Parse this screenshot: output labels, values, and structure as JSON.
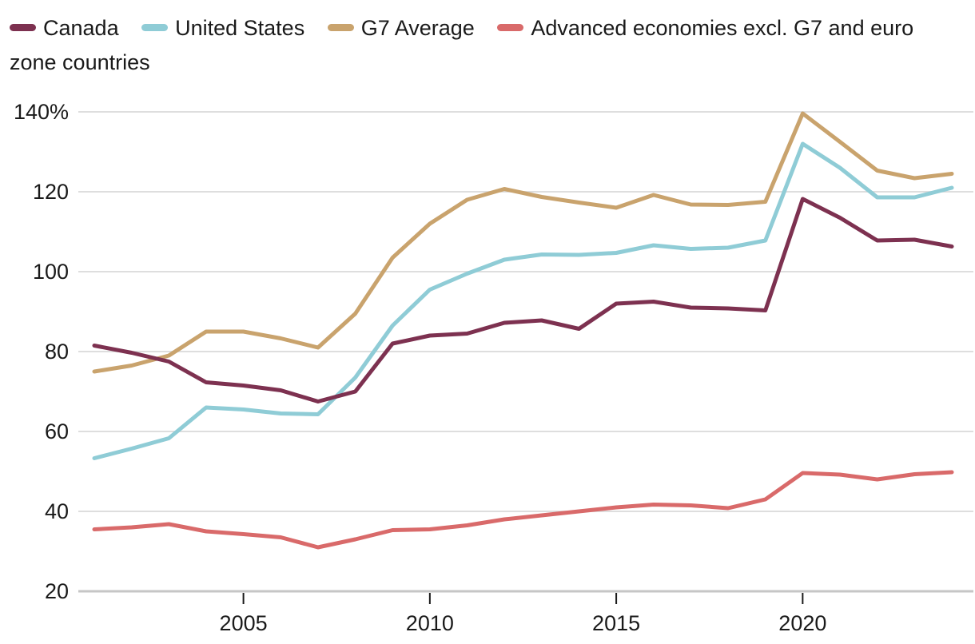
{
  "chart_data": {
    "type": "line",
    "x_label": "",
    "y_label": "",
    "x": [
      2001,
      2002,
      2003,
      2004,
      2005,
      2006,
      2007,
      2008,
      2009,
      2010,
      2011,
      2012,
      2013,
      2014,
      2015,
      2016,
      2017,
      2018,
      2019,
      2020,
      2021,
      2022,
      2023,
      2024
    ],
    "series": [
      {
        "name": "Canada",
        "color": "#7d3150",
        "values": [
          81.5,
          79.7,
          77.5,
          72.3,
          71.5,
          70.3,
          67.5,
          70,
          82,
          84,
          84.5,
          87.2,
          87.8,
          85.7,
          92,
          92.5,
          91,
          90.8,
          90.3,
          118.2,
          113.5,
          107.8,
          108,
          106.3
        ]
      },
      {
        "name": "United States",
        "color": "#8fccd6",
        "values": [
          53.3,
          55.7,
          58.3,
          66,
          65.5,
          64.5,
          64.3,
          73.5,
          86.5,
          95.5,
          99.5,
          103,
          104.3,
          104.2,
          104.7,
          106.6,
          105.7,
          106,
          107.8,
          132,
          126,
          118.6,
          118.6,
          121
        ]
      },
      {
        "name": "G7 Average",
        "color": "#c9a36d",
        "values": [
          75,
          76.5,
          79,
          85,
          85,
          83.3,
          81,
          89.5,
          103.5,
          112,
          118,
          120.7,
          118.7,
          117.3,
          116,
          119.2,
          116.8,
          116.7,
          117.5,
          139.6,
          132.5,
          125.3,
          123.4,
          124.5
        ]
      },
      {
        "name": "Advanced economies excl. G7 and euro zone countries",
        "color": "#d96a6a",
        "values": [
          35.5,
          36,
          36.8,
          35,
          34.3,
          33.5,
          31,
          33,
          35.3,
          35.5,
          36.5,
          38,
          39,
          40,
          41,
          41.7,
          41.5,
          40.8,
          43,
          49.6,
          49.2,
          48,
          49.3,
          49.8
        ]
      }
    ],
    "y_ticks": [
      {
        "label": "140%",
        "value": 140
      },
      {
        "label": "120",
        "value": 120
      },
      {
        "label": "100",
        "value": 100
      },
      {
        "label": "80",
        "value": 80
      },
      {
        "label": "60",
        "value": 60
      },
      {
        "label": "40",
        "value": 40
      },
      {
        "label": "20",
        "value": 20
      }
    ],
    "x_ticks": [
      {
        "label": "2005",
        "value": 2005
      },
      {
        "label": "2010",
        "value": 2010
      },
      {
        "label": "2015",
        "value": 2015
      },
      {
        "label": "2020",
        "value": 2020
      }
    ],
    "ylim": [
      20,
      140
    ],
    "xlim": [
      2001,
      2024
    ],
    "grid": "horizontal",
    "legend_position": "top",
    "style": {
      "text_color": "#1a1a1a",
      "gridline_color": "#d9d9d9",
      "axis_line_color": "#c6c6c6",
      "line_width": 5
    }
  }
}
